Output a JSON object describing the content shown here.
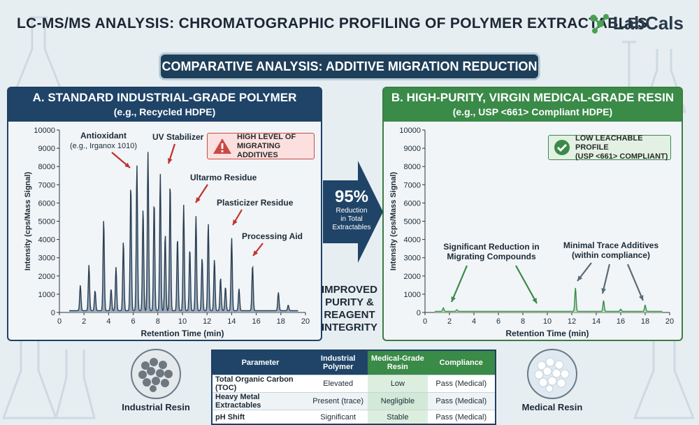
{
  "header": {
    "title": "LC-MS/MS ANALYSIS: CHROMATOGRAPHIC PROFILING OF POLYMER EXTRACTABLES",
    "logo_text": "LabCals"
  },
  "banner": {
    "text": "COMPARATIVE ANALYSIS: ADDITIVE MIGRATION REDUCTION"
  },
  "colors": {
    "dark_blue": "#1f4468",
    "green": "#3a8a48",
    "alert_red": "#c94a45"
  },
  "panel_a": {
    "title": "A. STANDARD INDUSTRIAL-GRADE POLYMER",
    "subtitle": "(e.g., Recycled HDPE)",
    "alert": {
      "line1": "HIGH LEVEL OF",
      "line2": "MIGRATING ADDITIVES",
      "icon": "warning-icon"
    },
    "annotations": [
      {
        "text": "Antioxidant",
        "sub": "(e.g., Irganox 1010)"
      },
      {
        "text": "UV Stabilizer"
      },
      {
        "text": "Ultarmo Residue"
      },
      {
        "text": "Plasticizer Residue"
      },
      {
        "text": "Processing Aid"
      }
    ]
  },
  "panel_b": {
    "title": "B. HIGH-PURITY, VIRGIN MEDICAL-GRADE RESIN",
    "subtitle": "(e.g., USP <661> Compliant HDPE)",
    "alert": {
      "line1": "LOW LEACHABLE PROFILE",
      "line2": "(USP <661> COMPLIANT)",
      "icon": "check-circle-icon"
    },
    "annotations": [
      {
        "text": "Significant Reduction in",
        "sub": "Migrating Compounds"
      },
      {
        "text": "Minimal Trace Additives",
        "sub": "(within compliance)"
      }
    ]
  },
  "middle": {
    "percent": "95%",
    "line1": "Reduction",
    "line2": "in Total",
    "line3": "Extractables",
    "integrity": [
      "IMPROVED",
      "PURITY &",
      "REAGENT",
      "INTEGRITY"
    ]
  },
  "table": {
    "headers": [
      "Parameter",
      "Industrial Polymer",
      "Medical-Grade Resin",
      "Compliance"
    ],
    "rows": [
      [
        "Total Organic Carbon (TOC)",
        "Elevated",
        "Low",
        "Pass (Medical)"
      ],
      [
        "Heavy Metal Extractables",
        "Present (trace)",
        "Negligible",
        "Pass (Medical)"
      ],
      [
        "pH Shift",
        "Significant",
        "Stable",
        "Pass (Medical)"
      ]
    ]
  },
  "resin_labels": {
    "industrial": "Industrial Resin",
    "medical": "Medical Resin"
  },
  "chart_data": [
    {
      "type": "line",
      "xlabel": "Retention Time (min)",
      "ylabel": "Intensity (cps/Mass Signal)",
      "xlim": [
        0,
        20
      ],
      "ylim": [
        0,
        10000
      ],
      "xticks": [
        0,
        2,
        4,
        6,
        8,
        10,
        12,
        14,
        16,
        18,
        20
      ],
      "yticks": [
        0,
        1000,
        2000,
        3000,
        4000,
        5000,
        6000,
        7000,
        8000,
        9000,
        10000
      ],
      "baseline": 100,
      "peaks": [
        {
          "x": 1.7,
          "y": 1500
        },
        {
          "x": 2.4,
          "y": 2600
        },
        {
          "x": 2.9,
          "y": 1200
        },
        {
          "x": 3.6,
          "y": 5100
        },
        {
          "x": 4.2,
          "y": 1300
        },
        {
          "x": 4.6,
          "y": 2500
        },
        {
          "x": 5.2,
          "y": 3900
        },
        {
          "x": 5.8,
          "y": 7000
        },
        {
          "x": 6.3,
          "y": 8100
        },
        {
          "x": 6.8,
          "y": 5700
        },
        {
          "x": 7.2,
          "y": 8800
        },
        {
          "x": 7.7,
          "y": 6100
        },
        {
          "x": 8.2,
          "y": 7600
        },
        {
          "x": 8.6,
          "y": 4300
        },
        {
          "x": 9.0,
          "y": 7100
        },
        {
          "x": 9.6,
          "y": 4100
        },
        {
          "x": 10.1,
          "y": 5900
        },
        {
          "x": 10.6,
          "y": 3500
        },
        {
          "x": 11.1,
          "y": 5300
        },
        {
          "x": 11.6,
          "y": 3000
        },
        {
          "x": 12.1,
          "y": 4900
        },
        {
          "x": 12.6,
          "y": 2900
        },
        {
          "x": 13.1,
          "y": 1900
        },
        {
          "x": 13.5,
          "y": 1400
        },
        {
          "x": 14.0,
          "y": 4100
        },
        {
          "x": 14.6,
          "y": 1300
        },
        {
          "x": 15.7,
          "y": 2600
        },
        {
          "x": 17.8,
          "y": 1100
        },
        {
          "x": 18.6,
          "y": 400
        }
      ],
      "fill": true
    },
    {
      "type": "line",
      "xlabel": "Retention Time (min)",
      "ylabel": "Intensity (cps/Mass Signal)",
      "xlim": [
        0,
        20
      ],
      "ylim": [
        0,
        10000
      ],
      "xticks": [
        0,
        2,
        4,
        6,
        8,
        10,
        12,
        14,
        16,
        18,
        20
      ],
      "yticks": [
        0,
        1000,
        2000,
        3000,
        4000,
        5000,
        6000,
        7000,
        8000,
        9000,
        10000
      ],
      "baseline": 60,
      "peaks": [
        {
          "x": 1.5,
          "y": 250
        },
        {
          "x": 2.6,
          "y": 150
        },
        {
          "x": 12.3,
          "y": 1350
        },
        {
          "x": 14.6,
          "y": 650
        },
        {
          "x": 16.0,
          "y": 180
        },
        {
          "x": 18.0,
          "y": 400
        }
      ],
      "fill": true
    }
  ]
}
